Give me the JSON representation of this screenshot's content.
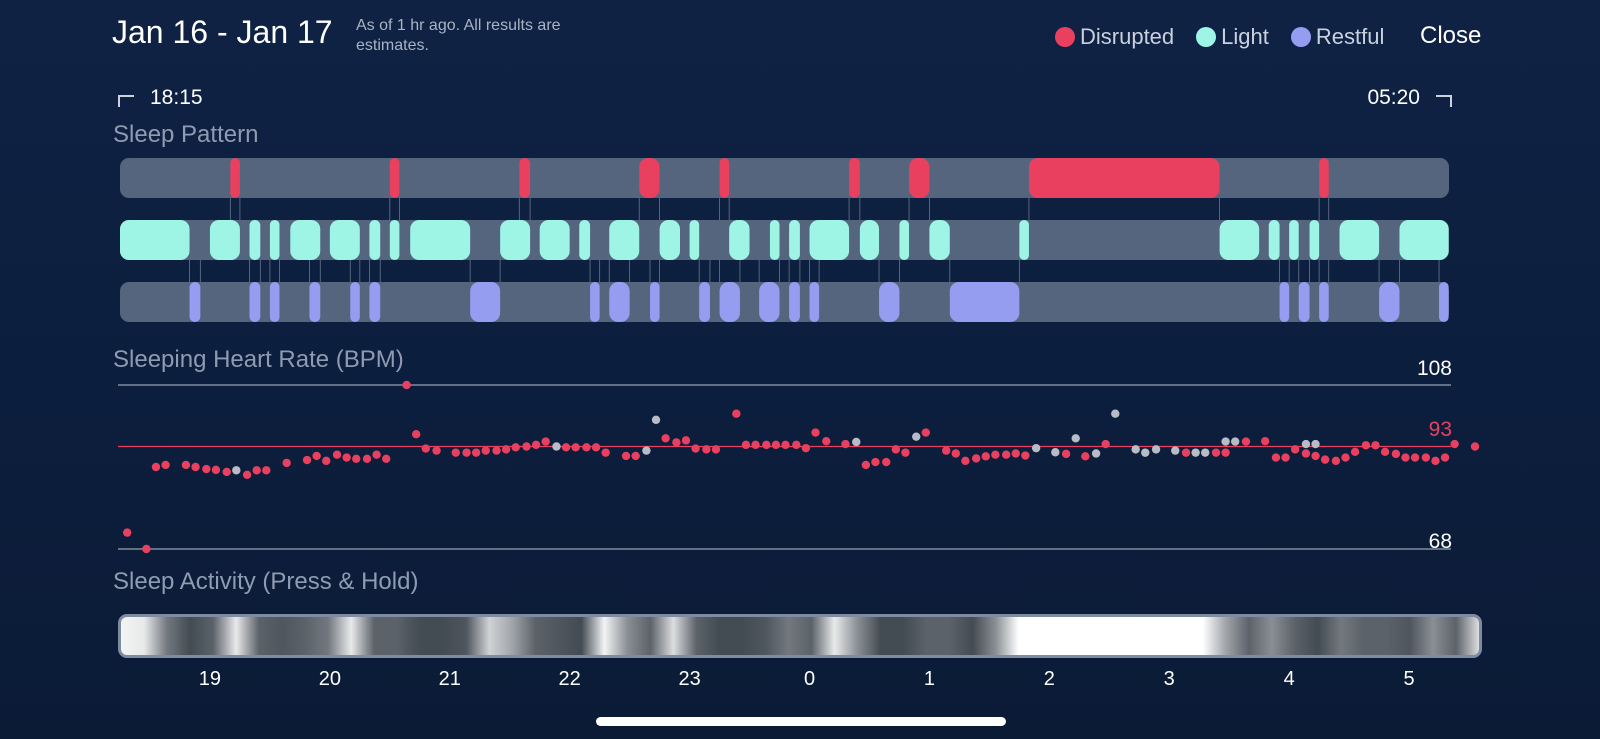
{
  "header": {
    "date_range": "Jan 16 - Jan 17",
    "estimate_note": "As of 1 hr ago. All results are estimates.",
    "close_label": "Close"
  },
  "legend": [
    {
      "label": "Disrupted",
      "color": "#e8405e"
    },
    {
      "label": "Light",
      "color": "#9ef5e6"
    },
    {
      "label": "Restful",
      "color": "#959df0"
    }
  ],
  "time_range": {
    "start": "18:15",
    "end": "05:20"
  },
  "colors": {
    "disrupted": "#e8405e",
    "light": "#9ef5e6",
    "restful": "#959df0",
    "track": "#56657e",
    "gray_point": "#b7bcc6"
  },
  "sleep_pattern": {
    "title": "Sleep Pattern",
    "note": "Segment values are hours on the timeline axis (18.25 = 18:15, 29.33 = 05:20)",
    "disrupted": [
      [
        19.17,
        19.25
      ],
      [
        20.5,
        20.58
      ],
      [
        21.58,
        21.67
      ],
      [
        22.58,
        22.75
      ],
      [
        23.25,
        23.33
      ],
      [
        24.33,
        24.42
      ],
      [
        24.83,
        25
      ],
      [
        25.83,
        27.42
      ],
      [
        28.25,
        28.33
      ]
    ],
    "light": [
      [
        18.25,
        18.83
      ],
      [
        19,
        19.25
      ],
      [
        19.33,
        19.42
      ],
      [
        19.5,
        19.58
      ],
      [
        19.67,
        19.92
      ],
      [
        20,
        20.25
      ],
      [
        20.33,
        20.42
      ],
      [
        20.5,
        20.58
      ],
      [
        20.67,
        21.17
      ],
      [
        21.42,
        21.67
      ],
      [
        21.75,
        22
      ],
      [
        22.08,
        22.17
      ],
      [
        22.33,
        22.58
      ],
      [
        22.75,
        22.92
      ],
      [
        23,
        23.08
      ],
      [
        23.33,
        23.5
      ],
      [
        23.67,
        23.75
      ],
      [
        23.83,
        23.92
      ],
      [
        24,
        24.33
      ],
      [
        24.42,
        24.58
      ],
      [
        24.75,
        24.83
      ],
      [
        25,
        25.17
      ],
      [
        25.75,
        25.83
      ],
      [
        27.42,
        27.75
      ],
      [
        27.83,
        27.92
      ],
      [
        28,
        28.08
      ],
      [
        28.17,
        28.25
      ],
      [
        28.42,
        28.75
      ],
      [
        28.92,
        29.33
      ]
    ],
    "restful": [
      [
        18.83,
        18.92
      ],
      [
        19.33,
        19.42
      ],
      [
        19.5,
        19.58
      ],
      [
        19.83,
        19.92
      ],
      [
        20.17,
        20.25
      ],
      [
        20.33,
        20.42
      ],
      [
        21.17,
        21.42
      ],
      [
        22.17,
        22.25
      ],
      [
        22.33,
        22.5
      ],
      [
        22.67,
        22.75
      ],
      [
        23.08,
        23.17
      ],
      [
        23.25,
        23.42
      ],
      [
        23.58,
        23.75
      ],
      [
        23.83,
        23.92
      ],
      [
        24,
        24.08
      ],
      [
        24.58,
        24.75
      ],
      [
        25.17,
        25.75
      ],
      [
        27.92,
        28
      ],
      [
        28.08,
        28.17
      ],
      [
        28.25,
        28.33
      ],
      [
        28.75,
        28.92
      ],
      [
        29.25,
        29.33
      ]
    ]
  },
  "heart_rate": {
    "title": "Sleeping Heart Rate (BPM)",
    "max_label": "108",
    "min_label": "68",
    "avg_label": "93",
    "max": 108,
    "min": 68,
    "avg": 93,
    "points": [
      [
        18.31,
        72
      ],
      [
        18.47,
        68
      ],
      [
        18.55,
        88
      ],
      [
        18.63,
        88.5
      ],
      [
        18.8,
        88.5
      ],
      [
        18.88,
        88
      ],
      [
        18.97,
        87.5
      ],
      [
        19.05,
        87.3
      ],
      [
        19.14,
        86.8
      ],
      [
        19.22,
        87.2
      ],
      [
        19.31,
        86.1
      ],
      [
        19.39,
        87.2
      ],
      [
        19.47,
        87.2
      ],
      [
        19.64,
        89
      ],
      [
        19.81,
        89.7
      ],
      [
        19.89,
        90.7
      ],
      [
        19.97,
        89.5
      ],
      [
        20.06,
        91
      ],
      [
        20.14,
        90.3
      ],
      [
        20.22,
        90
      ],
      [
        20.31,
        90
      ],
      [
        20.39,
        91
      ],
      [
        20.47,
        90
      ],
      [
        20.64,
        108
      ],
      [
        20.72,
        96
      ],
      [
        20.8,
        92.5
      ],
      [
        20.89,
        92
      ],
      [
        21.05,
        91.5
      ],
      [
        21.14,
        91.5
      ],
      [
        21.22,
        91.5
      ],
      [
        21.3,
        92
      ],
      [
        21.39,
        92
      ],
      [
        21.47,
        92.3
      ],
      [
        21.55,
        92.8
      ],
      [
        21.64,
        93
      ],
      [
        21.72,
        93.4
      ],
      [
        21.8,
        94.2
      ],
      [
        21.89,
        93
      ],
      [
        21.97,
        92.8
      ],
      [
        22.05,
        92.8
      ],
      [
        22.14,
        92.8
      ],
      [
        22.22,
        92.8
      ],
      [
        22.3,
        91.5
      ],
      [
        22.47,
        90.7
      ],
      [
        22.55,
        90.7
      ],
      [
        22.64,
        92
      ],
      [
        22.72,
        99.5
      ],
      [
        22.8,
        95
      ],
      [
        22.89,
        94
      ],
      [
        22.97,
        94.5
      ],
      [
        23.05,
        92.5
      ],
      [
        23.14,
        92.3
      ],
      [
        23.22,
        92.3
      ],
      [
        23.39,
        101
      ],
      [
        23.47,
        93.4
      ],
      [
        23.55,
        93.4
      ],
      [
        23.64,
        93.4
      ],
      [
        23.72,
        93.4
      ],
      [
        23.8,
        93.4
      ],
      [
        23.89,
        93.4
      ],
      [
        23.97,
        92.6
      ],
      [
        24.05,
        96.4
      ],
      [
        24.14,
        94.3
      ],
      [
        24.3,
        93.6
      ],
      [
        24.39,
        94.1
      ],
      [
        24.47,
        88.5
      ],
      [
        24.55,
        89.2
      ],
      [
        24.64,
        89.2
      ],
      [
        24.72,
        92.3
      ],
      [
        24.8,
        91.5
      ],
      [
        24.89,
        95.4
      ],
      [
        24.97,
        96.4
      ],
      [
        25.14,
        92
      ],
      [
        25.22,
        91.3
      ],
      [
        25.3,
        89.5
      ],
      [
        25.39,
        90.1
      ],
      [
        25.47,
        90.6
      ],
      [
        25.55,
        91
      ],
      [
        25.64,
        91
      ],
      [
        25.72,
        91.3
      ],
      [
        25.8,
        90.8
      ],
      [
        25.89,
        92.6
      ],
      [
        26.05,
        91.6
      ],
      [
        26.14,
        91.2
      ],
      [
        26.22,
        95
      ],
      [
        26.3,
        90.6
      ],
      [
        26.39,
        91.3
      ],
      [
        26.47,
        93.6
      ],
      [
        26.55,
        101
      ],
      [
        26.72,
        92.3
      ],
      [
        26.8,
        91.5
      ],
      [
        26.89,
        92.3
      ],
      [
        27.05,
        92
      ],
      [
        27.14,
        91.5
      ],
      [
        27.22,
        91.5
      ],
      [
        27.3,
        91.5
      ],
      [
        27.39,
        91.5
      ],
      [
        27.47,
        91.5
      ],
      [
        27.55,
        94.2
      ],
      [
        27.64,
        94.2
      ],
      [
        27.8,
        94.3
      ],
      [
        27.89,
        90.3
      ],
      [
        27.97,
        90.3
      ],
      [
        28.05,
        92.3
      ],
      [
        28.14,
        91.3
      ],
      [
        28.22,
        90.7
      ],
      [
        28.3,
        89.8
      ],
      [
        28.39,
        89.5
      ],
      [
        28.47,
        90.3
      ],
      [
        28.55,
        91.7
      ],
      [
        28.64,
        93.3
      ],
      [
        28.72,
        93.3
      ],
      [
        28.8,
        91.7
      ],
      [
        28.89,
        91.2
      ],
      [
        28.97,
        90.3
      ],
      [
        29.05,
        90.3
      ],
      [
        29.14,
        90.3
      ],
      [
        29.22,
        89.5
      ],
      [
        29.3,
        90.3
      ],
      [
        29.38,
        93.6
      ],
      [
        29.55,
        93
      ]
    ],
    "gray_points": [
      [
        19.22,
        87.2
      ],
      [
        21.89,
        93
      ],
      [
        22.64,
        92
      ],
      [
        22.72,
        99.5
      ],
      [
        24.39,
        94.1
      ],
      [
        24.89,
        95.4
      ],
      [
        25.89,
        92.6
      ],
      [
        26.05,
        91.6
      ],
      [
        26.22,
        95
      ],
      [
        26.39,
        91.3
      ],
      [
        26.55,
        101
      ],
      [
        26.72,
        92.3
      ],
      [
        26.8,
        91.5
      ],
      [
        26.89,
        92.3
      ],
      [
        27.05,
        92
      ],
      [
        27.22,
        91.5
      ],
      [
        27.3,
        91.5
      ],
      [
        27.47,
        94.2
      ],
      [
        27.55,
        94.2
      ],
      [
        28.14,
        93.6
      ],
      [
        28.22,
        93.6
      ]
    ]
  },
  "sleep_activity": {
    "title": "Sleep Activity (Press & Hold)",
    "levels_note": "activity intensity 0-1 sampled across the timeline",
    "levels": [
      0.95,
      0.9,
      0.4,
      0.2,
      0.3,
      0.9,
      0.3,
      0.25,
      0.3,
      0.4,
      0.9,
      0.3,
      0.3,
      0.2,
      0.2,
      0.25,
      0.8,
      0.6,
      0.3,
      0.25,
      0.2,
      0.95,
      0.5,
      0.3,
      0.85,
      0.3,
      0.2,
      0.2,
      0.25,
      0.4,
      0.3,
      0.9,
      0.5,
      0.2,
      0.2,
      0.3,
      0.3,
      0.2,
      0.5,
      1,
      1,
      1,
      1,
      1,
      1,
      1,
      1,
      1,
      0.6,
      0.3,
      0.5,
      0.3,
      0.2,
      0.4,
      0.3,
      0.3,
      0.25,
      0.5,
      0.3,
      0.85
    ]
  },
  "hour_axis": [
    "19",
    "20",
    "21",
    "22",
    "23",
    "0",
    "1",
    "2",
    "3",
    "4",
    "5"
  ]
}
